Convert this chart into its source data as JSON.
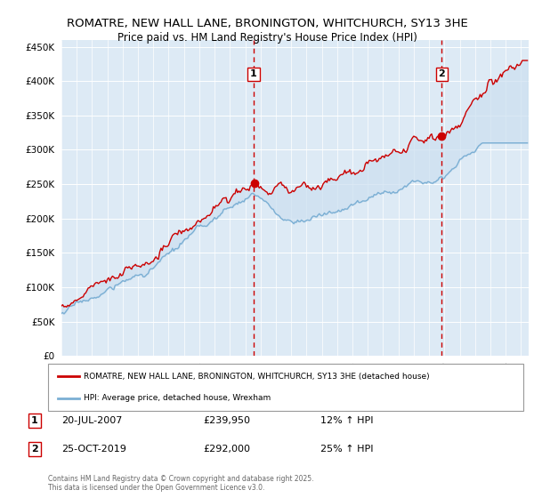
{
  "title_line1": "ROMATRE, NEW HALL LANE, BRONINGTON, WHITCHURCH, SY13 3HE",
  "title_line2": "Price paid vs. HM Land Registry's House Price Index (HPI)",
  "legend_line1": "ROMATRE, NEW HALL LANE, BRONINGTON, WHITCHURCH, SY13 3HE (detached house)",
  "legend_line2": "HPI: Average price, detached house, Wrexham",
  "footnote": "Contains HM Land Registry data © Crown copyright and database right 2025.\nThis data is licensed under the Open Government Licence v3.0.",
  "sale1_date": "20-JUL-2007",
  "sale1_price": "£239,950",
  "sale1_hpi": "12% ↑ HPI",
  "sale1_year": 2007.55,
  "sale1_value": 239950,
  "sale2_date": "25-OCT-2019",
  "sale2_price": "£292,000",
  "sale2_hpi": "25% ↑ HPI",
  "sale2_year": 2019.82,
  "sale2_value": 292000,
  "color_property": "#cc0000",
  "color_hpi": "#7bafd4",
  "color_fill": "#cce0f0",
  "color_dashed_line": "#cc0000",
  "ylim": [
    0,
    460000
  ],
  "yticks": [
    0,
    50000,
    100000,
    150000,
    200000,
    250000,
    300000,
    350000,
    400000,
    450000
  ],
  "bg_color": "#ddeaf5",
  "grid_color": "#ffffff",
  "title_fontsize": 9.5,
  "subtitle_fontsize": 8.5
}
